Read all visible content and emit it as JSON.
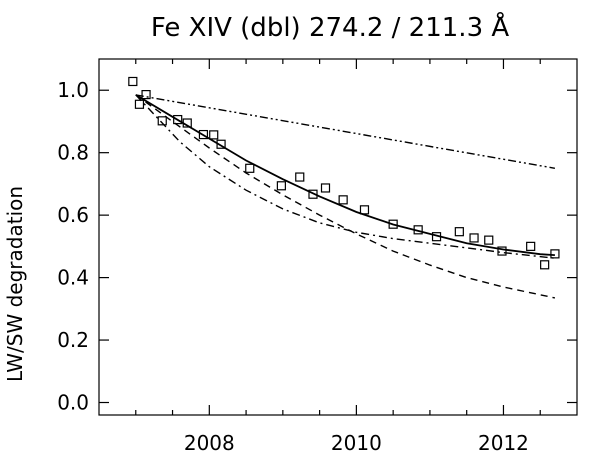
{
  "chart_data": {
    "type": "scatter",
    "title": "Fe XIV (dbl) 274.2 / 211.3 Å",
    "xlabel": "",
    "ylabel": "LW/SW degradation",
    "xlim": [
      2006.5,
      2013.0
    ],
    "ylim": [
      -0.04,
      1.1
    ],
    "x_ticks": [
      2008,
      2010,
      2012
    ],
    "y_ticks": [
      0.0,
      0.2,
      0.4,
      0.6,
      0.8,
      1.0
    ],
    "x_tick_labels": [
      "2008",
      "2010",
      "2012"
    ],
    "y_tick_labels": [
      "0.0",
      "0.2",
      "0.4",
      "0.6",
      "0.8",
      "1.0"
    ],
    "grid": false,
    "legend": "none",
    "series": [
      {
        "style": "square-markers",
        "x": [
          2006.96,
          2007.05,
          2007.14,
          2007.36,
          2007.57,
          2007.7,
          2007.92,
          2008.06,
          2008.16,
          2008.55,
          2008.98,
          2009.23,
          2009.41,
          2009.58,
          2009.82,
          2010.11,
          2010.5,
          2010.84,
          2011.09,
          2011.4,
          2011.6,
          2011.8,
          2011.98,
          2012.37,
          2012.56,
          2012.7
        ],
        "y": [
          1.028,
          0.955,
          0.986,
          0.902,
          0.906,
          0.895,
          0.858,
          0.857,
          0.827,
          0.75,
          0.694,
          0.722,
          0.667,
          0.687,
          0.649,
          0.617,
          0.571,
          0.553,
          0.531,
          0.547,
          0.527,
          0.52,
          0.485,
          0.5,
          0.441,
          0.476
        ]
      },
      {
        "style": "solid",
        "x": [
          2007.0,
          2007.5,
          2008.0,
          2008.5,
          2009.0,
          2009.5,
          2010.0,
          2010.5,
          2011.0,
          2011.5,
          2012.0,
          2012.5,
          2012.7
        ],
        "y": [
          0.985,
          0.915,
          0.845,
          0.775,
          0.715,
          0.66,
          0.61,
          0.57,
          0.54,
          0.51,
          0.49,
          0.475,
          0.472
        ]
      },
      {
        "style": "dashed",
        "x": [
          2007.0,
          2007.5,
          2008.0,
          2008.5,
          2009.0,
          2009.5,
          2010.0,
          2010.5,
          2011.0,
          2011.5,
          2012.0,
          2012.5,
          2012.7
        ],
        "y": [
          0.985,
          0.9,
          0.815,
          0.735,
          0.665,
          0.6,
          0.54,
          0.485,
          0.44,
          0.4,
          0.37,
          0.345,
          0.335
        ]
      },
      {
        "style": "dash-dot",
        "x": [
          2007.0,
          2007.3,
          2007.6,
          2008.0,
          2008.5,
          2009.0,
          2009.5,
          2010.0,
          2010.5,
          2011.0,
          2011.5,
          2012.0,
          2012.7
        ],
        "y": [
          0.985,
          0.91,
          0.835,
          0.755,
          0.68,
          0.62,
          0.575,
          0.545,
          0.525,
          0.51,
          0.495,
          0.48,
          0.462
        ]
      },
      {
        "style": "dash-dot-dot",
        "x": [
          2007.0,
          2012.7
        ],
        "y": [
          0.985,
          0.75
        ]
      }
    ]
  }
}
